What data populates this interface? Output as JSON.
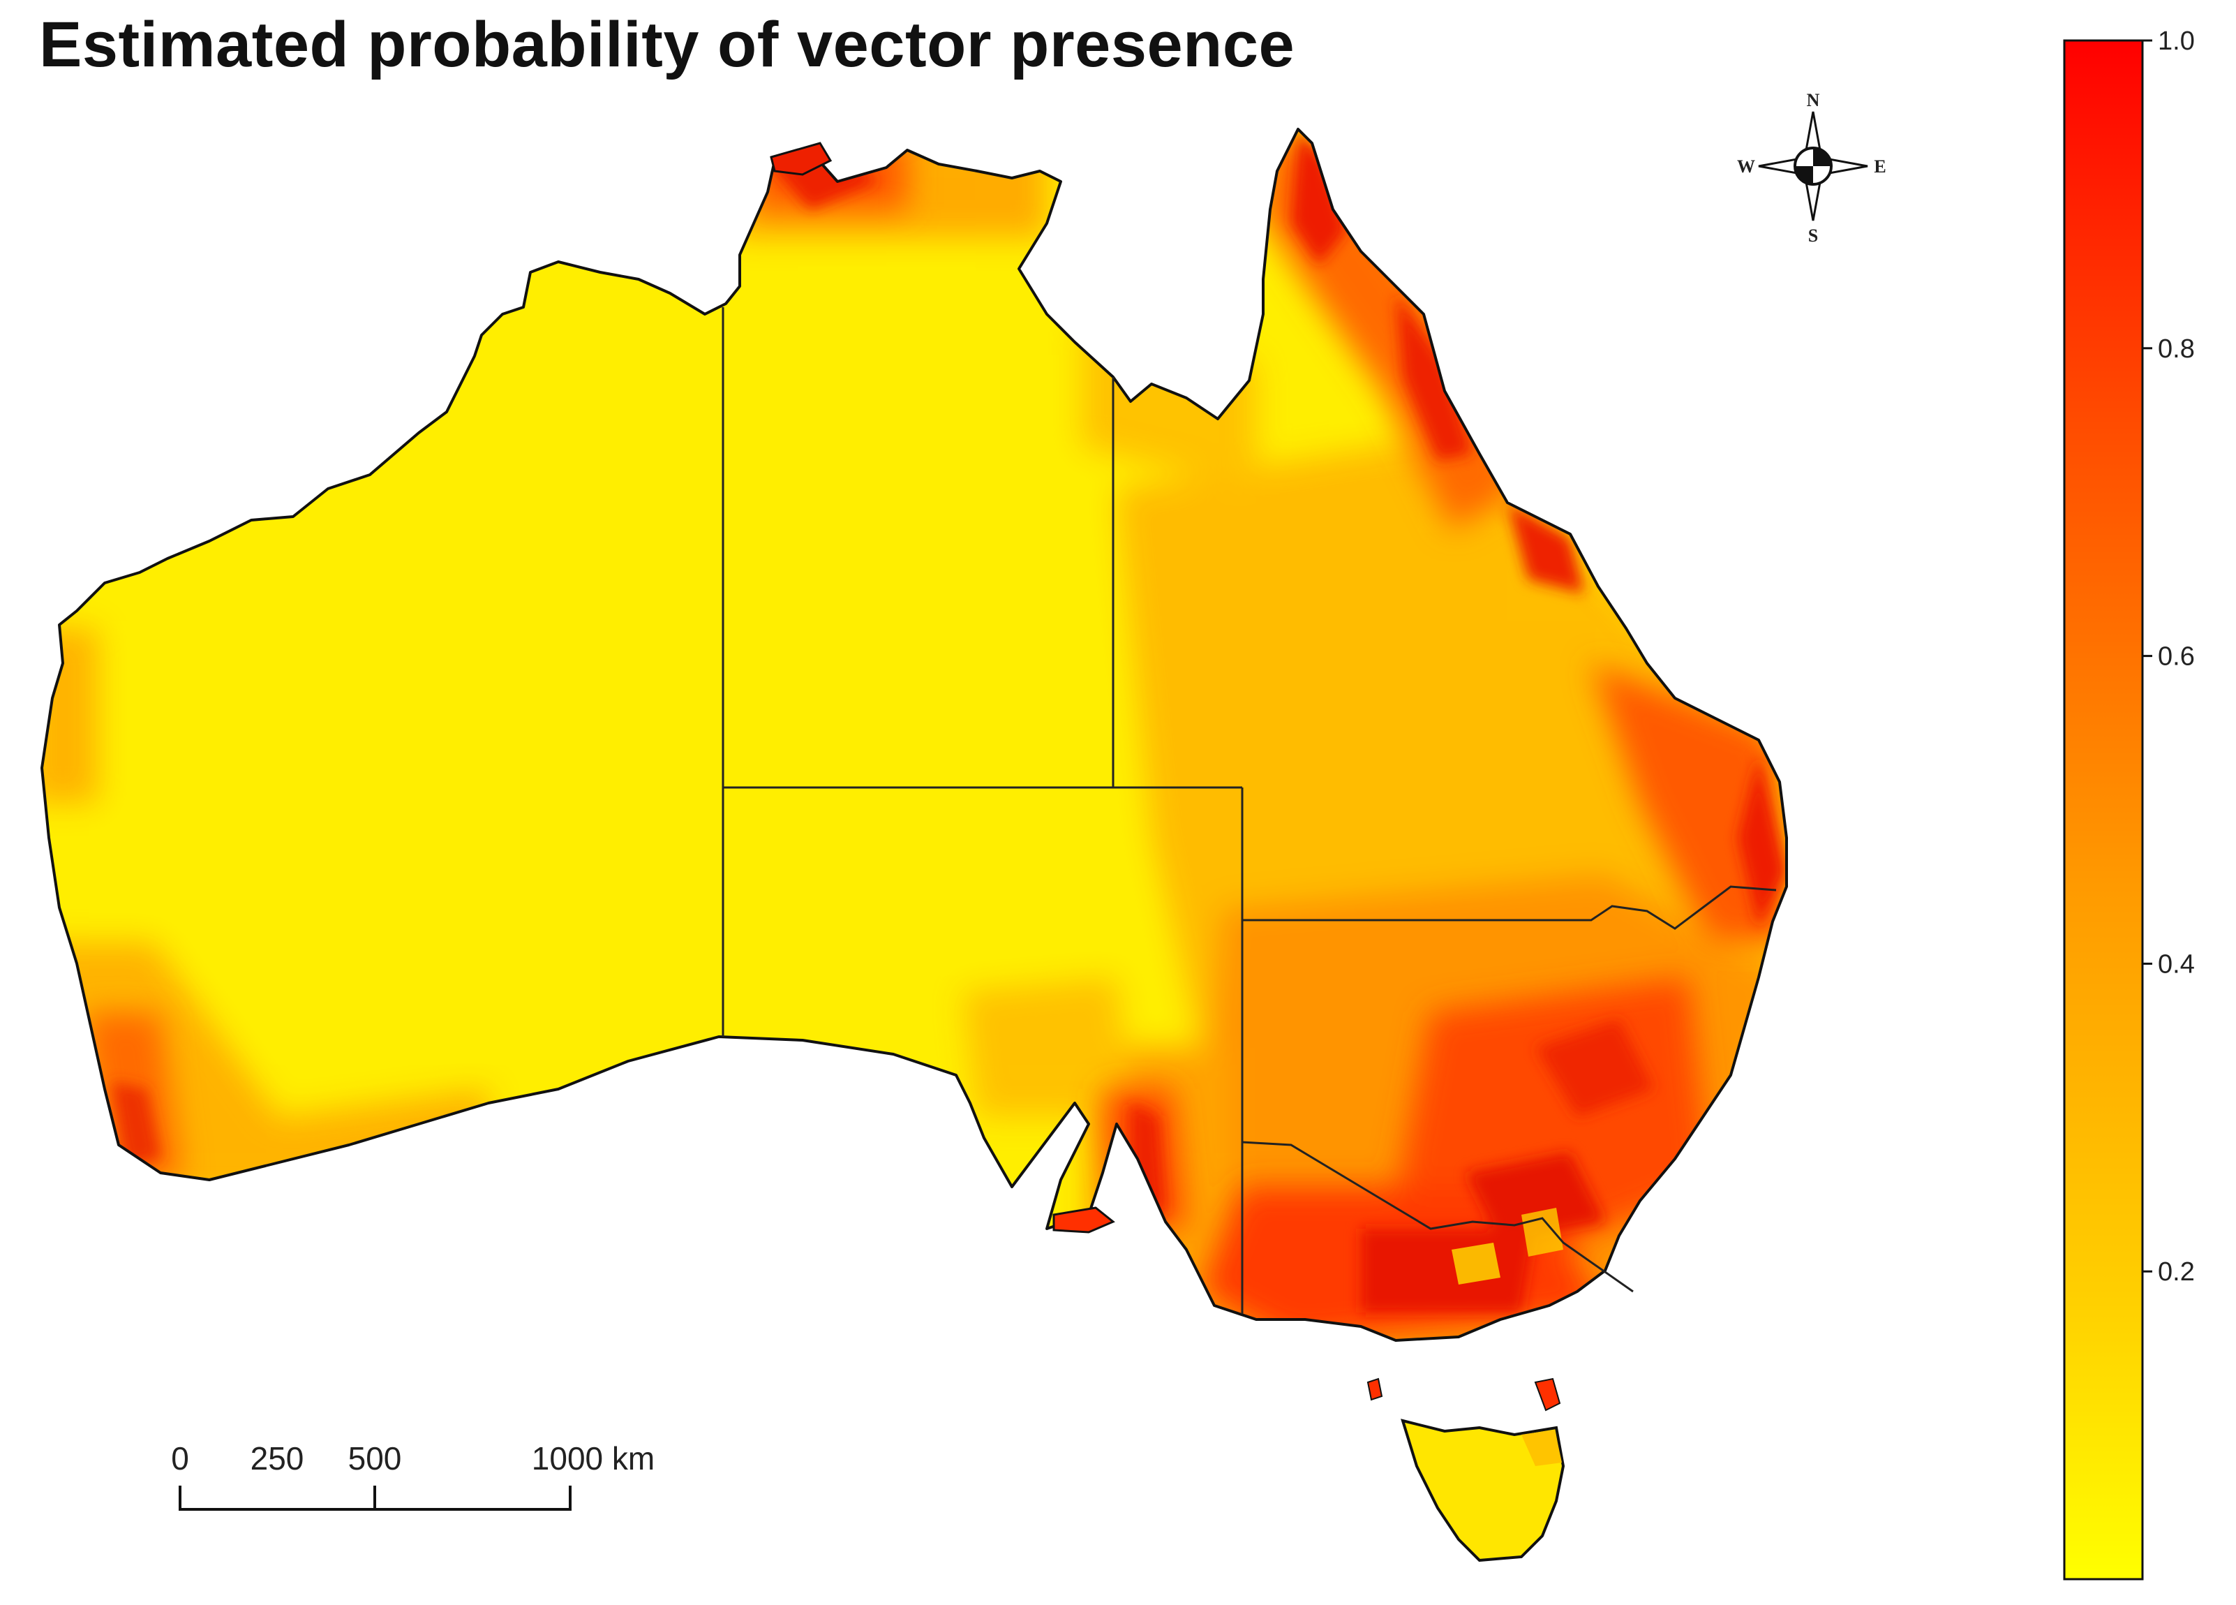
{
  "title": "Estimated probability of vector presence",
  "legend": {
    "ticks": [
      {
        "value": 1.0,
        "label": "1.0"
      },
      {
        "value": 0.8,
        "label": "0.8"
      },
      {
        "value": 0.6,
        "label": "0.6"
      },
      {
        "value": 0.4,
        "label": "0.4"
      },
      {
        "value": 0.2,
        "label": "0.2"
      }
    ],
    "min": 0.0,
    "max": 1.0,
    "colors": {
      "low": "#ffff00",
      "mid": "#ff9900",
      "high": "#ff0000"
    }
  },
  "scale_bar": {
    "labels": [
      "0",
      "250",
      "500",
      "1000 km"
    ]
  },
  "compass": {
    "north": "N",
    "south": "S",
    "east": "E",
    "west": "W"
  },
  "map": {
    "region": "Australia",
    "colors": {
      "base": "#ffee00",
      "moderate": "#ffb300",
      "high": "#ff6a00",
      "very_high": "#ee1c00",
      "outline": "#111111",
      "border": "#222222"
    }
  }
}
